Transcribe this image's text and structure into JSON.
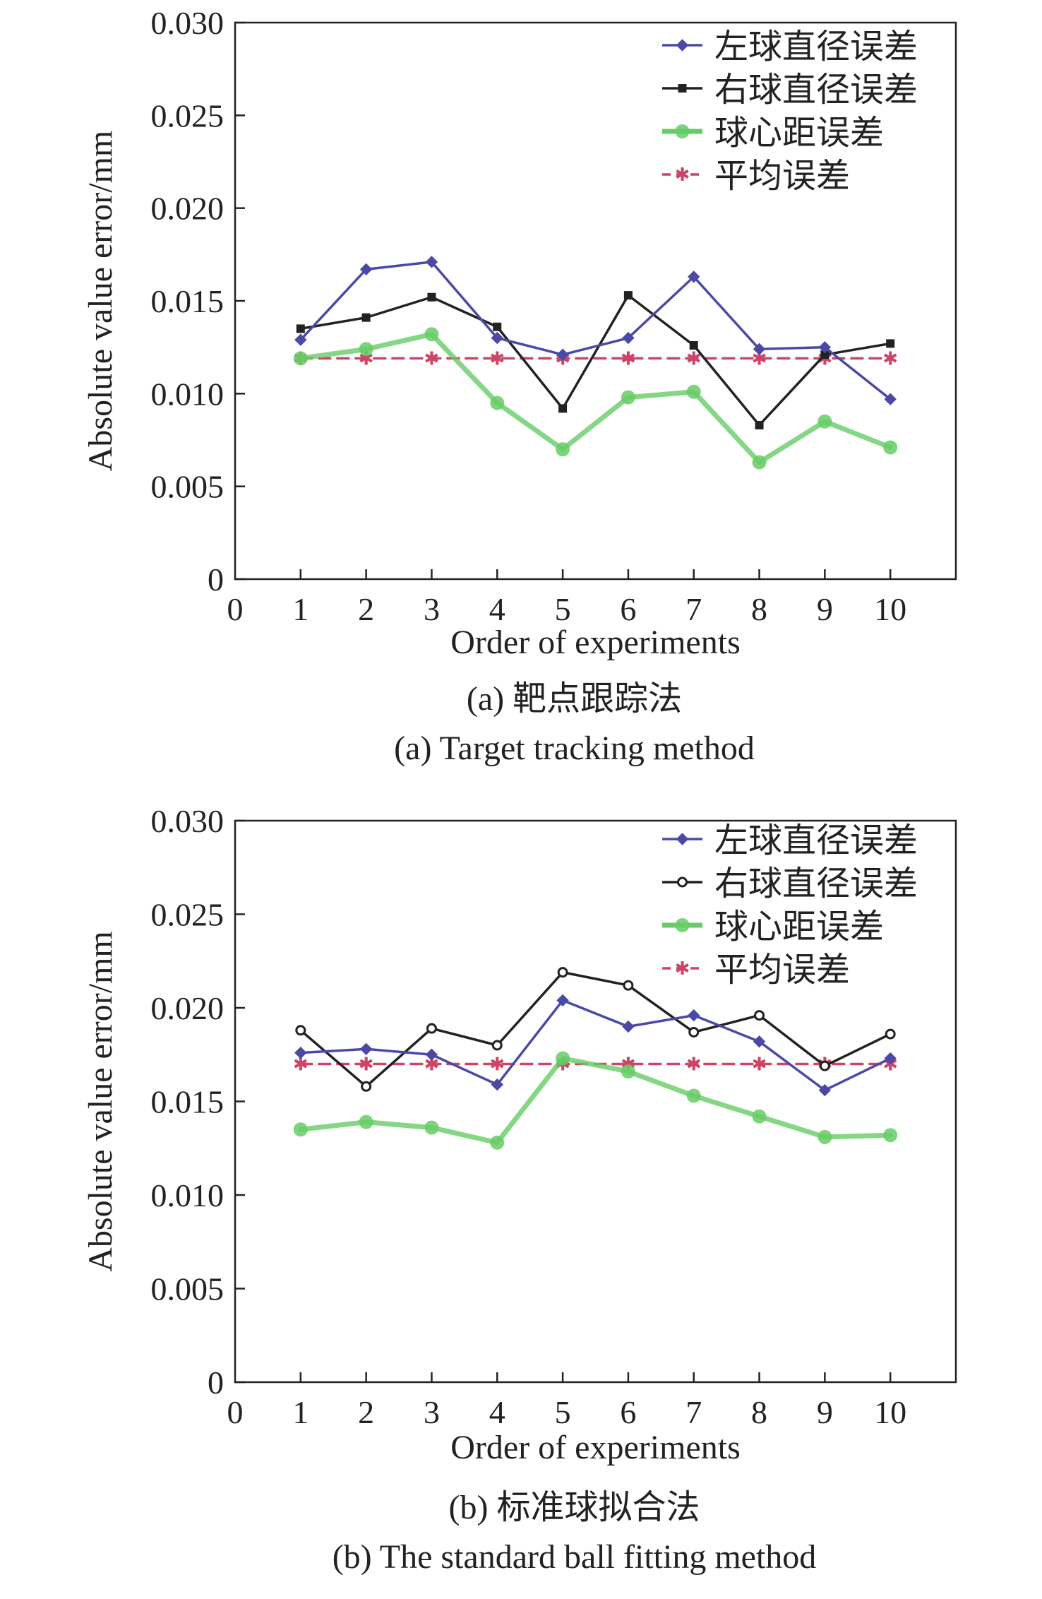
{
  "chart_data": [
    {
      "type": "line",
      "panel": "a",
      "caption_cn": "(a) 靶点跟踪法",
      "caption_en": "(a) Target tracking method",
      "xlabel": "Order of experiments",
      "ylabel": "Absolute value error/mm",
      "xlim": [
        0,
        11
      ],
      "ylim": [
        0,
        0.03
      ],
      "x_ticks": [
        "0",
        "1",
        "2",
        "3",
        "4",
        "5",
        "6",
        "7",
        "8",
        "9",
        "10"
      ],
      "y_ticks": [
        "0",
        "0.005",
        "0.010",
        "0.015",
        "0.020",
        "0.025",
        "0.030"
      ],
      "x": [
        1,
        2,
        3,
        4,
        5,
        6,
        7,
        8,
        9,
        10
      ],
      "legend_position": "top-right",
      "series": [
        {
          "name": "左球直径误差",
          "color": "#4a4aa6",
          "marker": "diamond",
          "dashed": false,
          "values": [
            0.0129,
            0.0167,
            0.0171,
            0.013,
            0.0121,
            0.013,
            0.0163,
            0.0124,
            0.0125,
            0.0097
          ]
        },
        {
          "name": "右球直径误差",
          "color": "#222222",
          "marker": "square",
          "dashed": false,
          "values": [
            0.0135,
            0.0141,
            0.0152,
            0.0136,
            0.0092,
            0.0153,
            0.0126,
            0.0083,
            0.0121,
            0.0127
          ]
        },
        {
          "name": "球心距误差",
          "color": "#66cc66",
          "marker": "circle",
          "dashed": false,
          "values": [
            0.0119,
            0.0124,
            0.0132,
            0.0095,
            0.007,
            0.0098,
            0.0101,
            0.0063,
            0.0085,
            0.0071
          ]
        },
        {
          "name": "平均误差",
          "color": "#cc4466",
          "marker": "star",
          "dashed": true,
          "values": [
            0.0119,
            0.0119,
            0.0119,
            0.0119,
            0.0119,
            0.0119,
            0.0119,
            0.0119,
            0.0119,
            0.0119
          ]
        }
      ]
    },
    {
      "type": "line",
      "panel": "b",
      "caption_cn": "(b) 标准球拟合法",
      "caption_en": "(b) The standard ball fitting method",
      "xlabel": "Order of experiments",
      "ylabel": "Absolute value error/mm",
      "xlim": [
        0,
        11
      ],
      "ylim": [
        0,
        0.03
      ],
      "x_ticks": [
        "0",
        "1",
        "2",
        "3",
        "4",
        "5",
        "6",
        "7",
        "8",
        "9",
        "10"
      ],
      "y_ticks": [
        "0",
        "0.005",
        "0.010",
        "0.015",
        "0.020",
        "0.025",
        "0.030"
      ],
      "x": [
        1,
        2,
        3,
        4,
        5,
        6,
        7,
        8,
        9,
        10
      ],
      "legend_position": "top-right",
      "series": [
        {
          "name": "左球直径误差",
          "color": "#4a4aa6",
          "marker": "diamond",
          "dashed": false,
          "values": [
            0.0176,
            0.0178,
            0.0175,
            0.0159,
            0.0204,
            0.019,
            0.0196,
            0.0182,
            0.0156,
            0.0173
          ]
        },
        {
          "name": "右球直径误差",
          "color": "#222222",
          "marker": "circle-open",
          "dashed": false,
          "values": [
            0.0188,
            0.0158,
            0.0189,
            0.018,
            0.0219,
            0.0212,
            0.0187,
            0.0196,
            0.0169,
            0.0186
          ]
        },
        {
          "name": "球心距误差",
          "color": "#66cc66",
          "marker": "circle",
          "dashed": false,
          "values": [
            0.0135,
            0.0139,
            0.0136,
            0.0128,
            0.0173,
            0.0166,
            0.0153,
            0.0142,
            0.0131,
            0.0132
          ]
        },
        {
          "name": "平均误差",
          "color": "#cc4466",
          "marker": "star",
          "dashed": true,
          "values": [
            0.017,
            0.017,
            0.017,
            0.017,
            0.017,
            0.017,
            0.017,
            0.017,
            0.017,
            0.017
          ]
        }
      ]
    }
  ]
}
